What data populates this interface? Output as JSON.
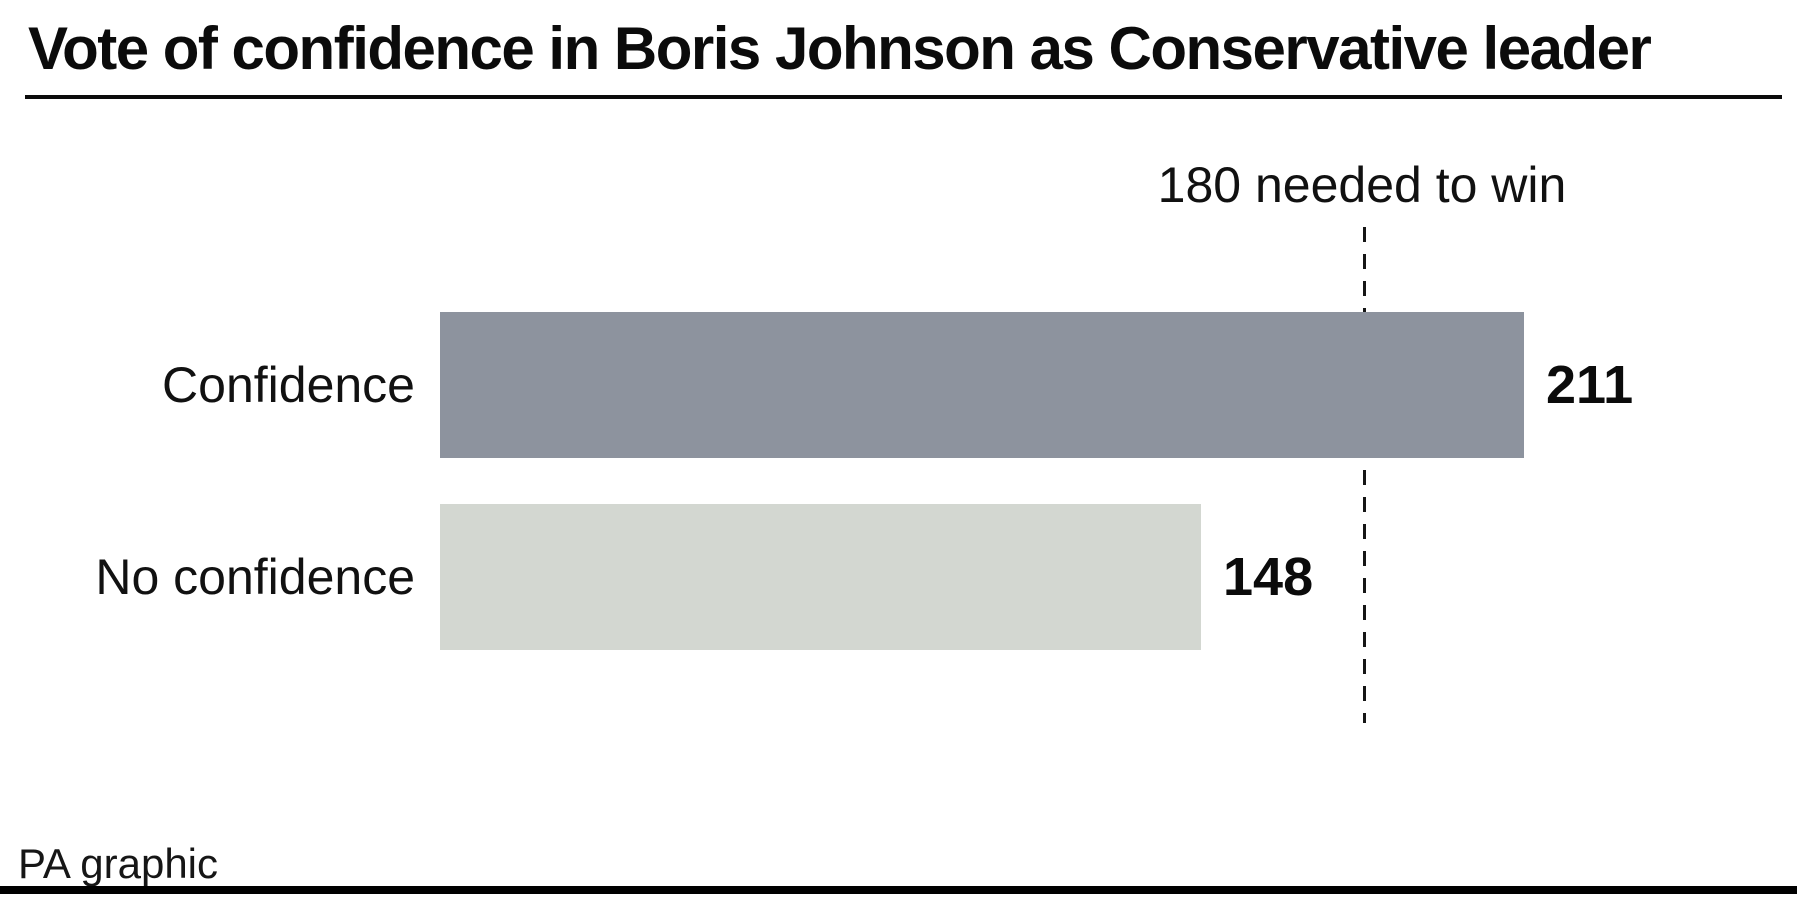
{
  "title": "Vote of confidence in Boris Johnson as Conservative leader",
  "chart_data": {
    "type": "bar",
    "orientation": "horizontal",
    "title": "Vote of confidence in Boris Johnson as Conservative leader",
    "categories": [
      "Confidence",
      "No confidence"
    ],
    "values": [
      211,
      148
    ],
    "value_labels": [
      "211",
      "148"
    ],
    "annotation": {
      "label": "180 needed to win",
      "value": 180,
      "style": "dashed-vertical-line"
    },
    "bar_colors": [
      "#8D939E",
      "#D3D7D1"
    ],
    "xlim": [
      0,
      240
    ],
    "grid": false,
    "legend": false,
    "footer": "PA graphic"
  },
  "colors": {
    "bar_confidence": "#8D939E",
    "bar_no_confidence": "#D3D7D1",
    "text": "#0F0F0F",
    "rule": "#000000",
    "background": "#FFFFFF"
  }
}
